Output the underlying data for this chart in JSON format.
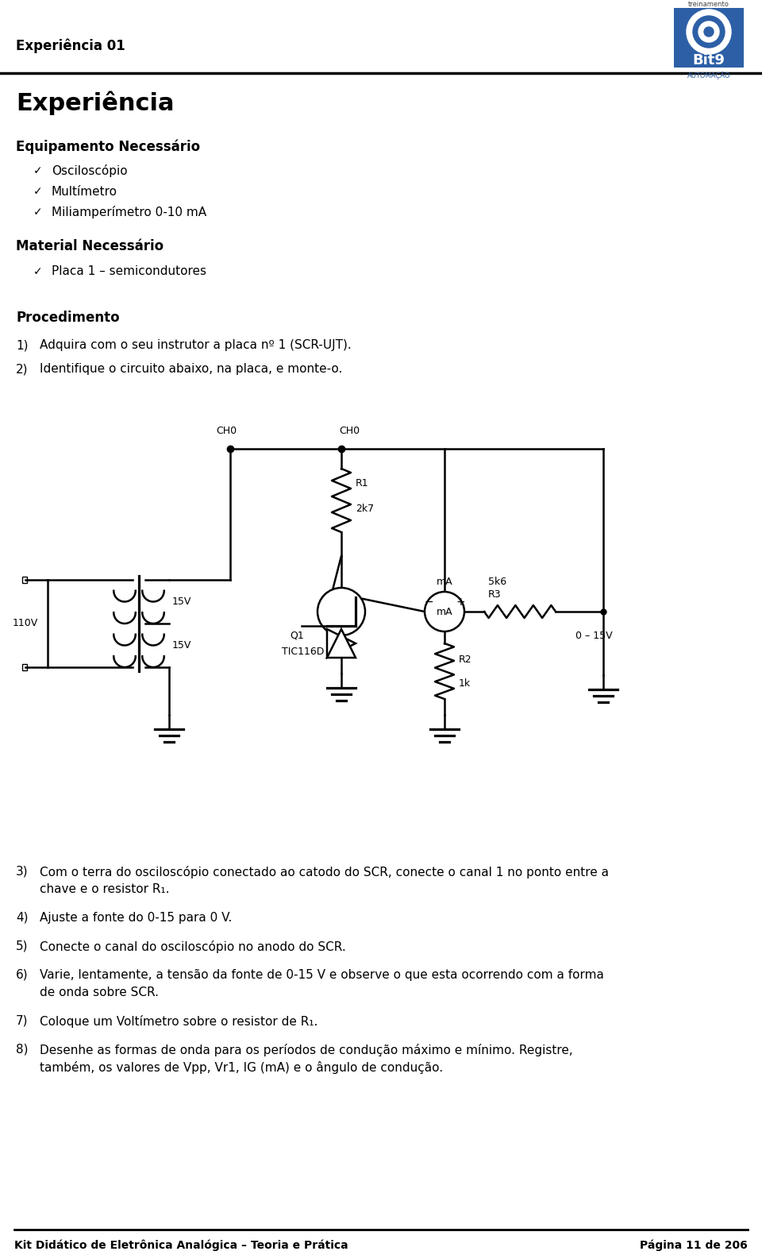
{
  "bg_color": "#ffffff",
  "text_color": "#000000",
  "page_title": "Experiência 01",
  "section_title": "Experiência",
  "subsection1": "Equipamento Necessário",
  "items1": [
    "Osciloscópio",
    "Multímetro",
    "Miliamperímetro 0-10 mA"
  ],
  "subsection2": "Material Necessário",
  "items2": [
    "Placa 1 – semicondutores"
  ],
  "subsection3": "Procedimento",
  "footer_left": "Kit Didático de Eletrônica Analógica – Teoria e Prática",
  "footer_right": "Página 11 de 206",
  "logo_text": "Bit9",
  "logo_subtext": "AUTOMAÇÃO",
  "logo_top_text": "treinamento"
}
